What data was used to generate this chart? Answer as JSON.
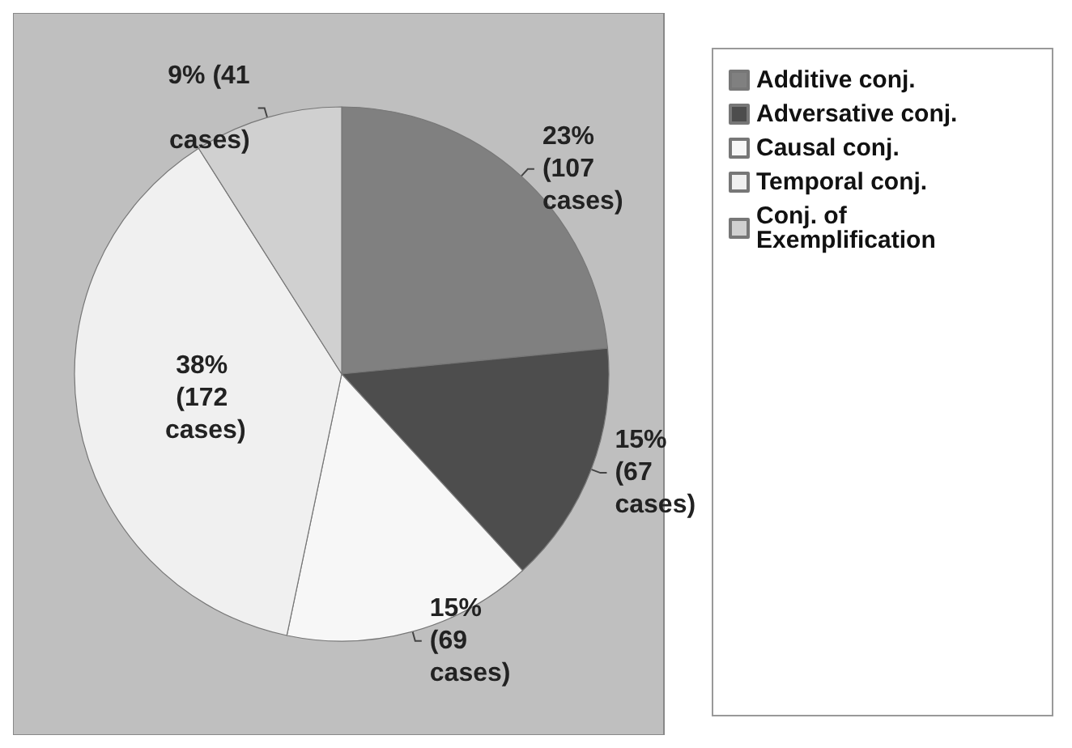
{
  "chart_data": {
    "type": "pie",
    "categories": [
      "Additive conj.",
      "Adversative conj.",
      "Causal conj.",
      "Temporal conj.",
      "Conj. of Exemplification"
    ],
    "values": [
      107,
      67,
      69,
      172,
      41
    ],
    "colors": [
      "#808080",
      "#4d4d4d",
      "#f7f7f7",
      "#f0f0f0",
      "#d0d0d0"
    ],
    "value_labels": [
      "23% (107 cases)",
      "15% (67 cases)",
      "15% (69 cases)",
      "38% (172 cases)",
      "9% (41 cases)"
    ],
    "legend": "right"
  }
}
